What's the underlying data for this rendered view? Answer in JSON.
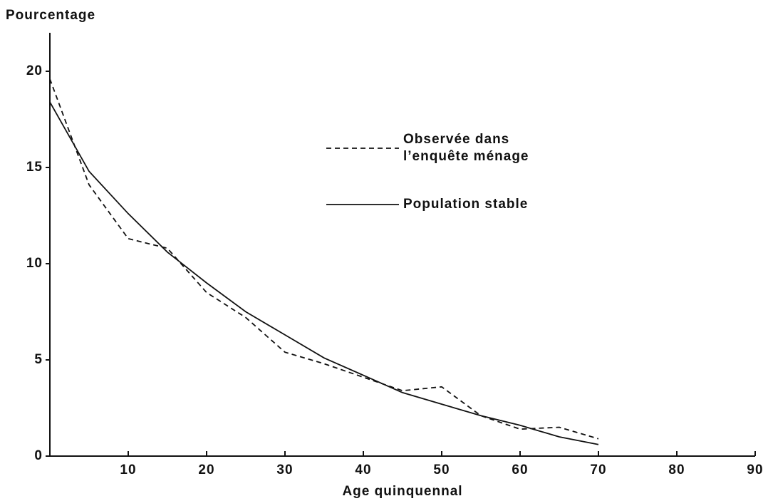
{
  "chart_data": {
    "type": "line",
    "y_label": "Pourcentage",
    "x_label": "Age quinquennal",
    "x": [
      0,
      5,
      10,
      15,
      20,
      25,
      30,
      35,
      40,
      45,
      50,
      55,
      60,
      65,
      70
    ],
    "series": [
      {
        "name": "Observée dans l’enquête ménage",
        "color": "#111111",
        "dash": true,
        "values": [
          19.6,
          14.1,
          11.3,
          10.8,
          8.5,
          7.2,
          5.4,
          4.8,
          4.1,
          3.4,
          3.6,
          2.1,
          1.4,
          1.5,
          0.9
        ]
      },
      {
        "name": "Population stable",
        "color": "#111111",
        "dash": false,
        "values": [
          18.4,
          14.8,
          12.6,
          10.6,
          9.0,
          7.5,
          6.3,
          5.1,
          4.2,
          3.3,
          2.7,
          2.1,
          1.6,
          1.0,
          0.6
        ]
      }
    ],
    "xlim": [
      0,
      90
    ],
    "ylim": [
      0,
      22
    ],
    "xticks": [
      10,
      20,
      30,
      40,
      50,
      60,
      70,
      80,
      90
    ],
    "yticks": [
      0,
      5,
      10,
      15,
      20
    ]
  }
}
